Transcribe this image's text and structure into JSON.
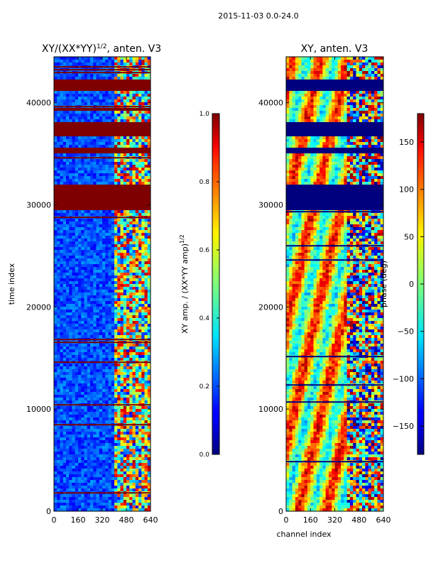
{
  "figure": {
    "suptitle": "2015-11-03 0.0-24.0"
  },
  "chart_data": [
    {
      "type": "heatmap",
      "title_main": "XY/(XX*YY)",
      "title_sup": "1/2",
      "title_rest": ", anten. V3",
      "xlabel": "",
      "ylabel": "time index",
      "xlim": [
        0,
        640
      ],
      "ylim": [
        0,
        44500
      ],
      "xticks": [
        0,
        160,
        320,
        480,
        640
      ],
      "yticks": [
        0,
        10000,
        20000,
        30000,
        40000
      ],
      "colorbar": {
        "label_main": "XY amp. / (XX*YY amp)",
        "label_sup": "1/2",
        "range": [
          0.0,
          1.0
        ],
        "ticks": [
          "0.0",
          "0.2",
          "0.4",
          "0.6",
          "0.8",
          "1.0"
        ]
      },
      "flagged_bands": [
        [
          29500,
          32000
        ],
        [
          35000,
          35500
        ],
        [
          36800,
          38200
        ],
        [
          41200,
          42300
        ],
        [
          39300,
          39700
        ]
      ],
      "colormap": "jet"
    },
    {
      "type": "heatmap",
      "title_main": "XY, anten. V3",
      "xlabel": "channel index",
      "ylabel": "",
      "xlim": [
        0,
        640
      ],
      "ylim": [
        0,
        44500
      ],
      "xticks": [
        0,
        160,
        320,
        480,
        640
      ],
      "yticks": [
        0,
        10000,
        20000,
        30000,
        40000
      ],
      "colorbar": {
        "label_main": "phase (deg)",
        "range": [
          -180,
          180
        ],
        "ticks": [
          "150",
          "100",
          "50",
          "0",
          "−50",
          "−100",
          "−150"
        ],
        "tick_values": [
          150,
          100,
          50,
          0,
          -50,
          -100,
          -150
        ]
      },
      "flagged_bands": [
        [
          29500,
          32000
        ],
        [
          35000,
          35500
        ],
        [
          36800,
          38200
        ],
        [
          41200,
          42300
        ]
      ],
      "colormap": "jet"
    }
  ]
}
